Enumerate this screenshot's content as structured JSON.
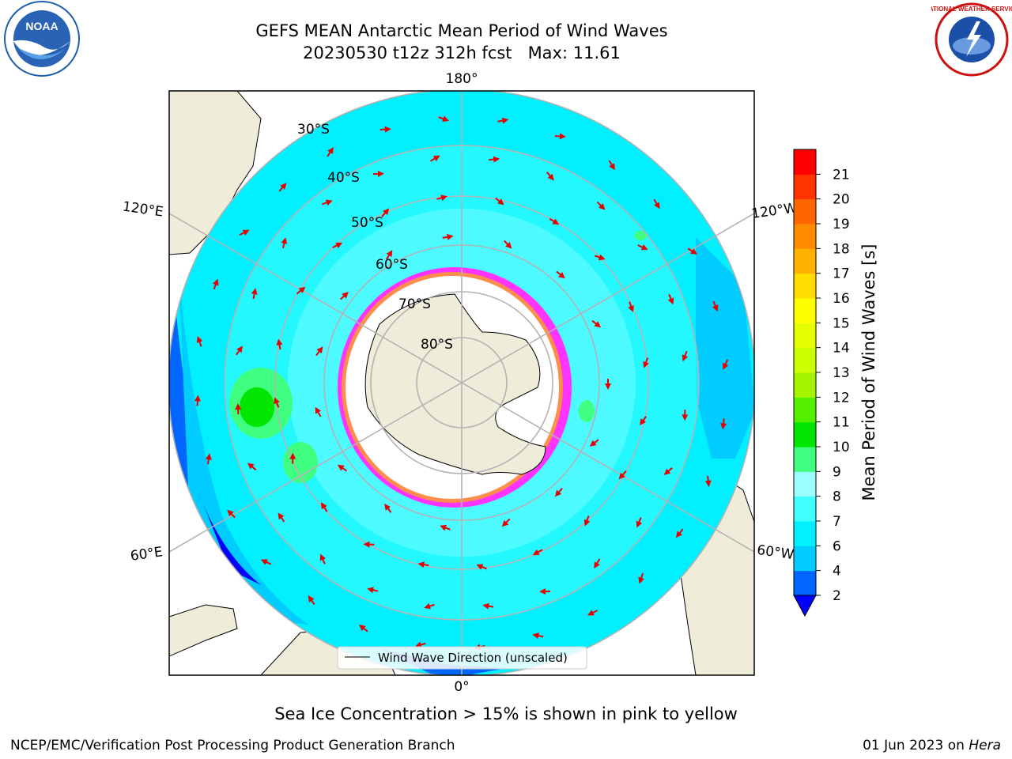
{
  "header": {
    "title_line1": "GEFS MEAN Antarctic Mean Period of Wind Waves",
    "title_line2": "20230530 t12z 312h fcst   Max: 11.61"
  },
  "logos": {
    "left": {
      "icon": "noaa-logo",
      "text": "NOAA"
    },
    "right": {
      "icon": "nws-logo",
      "text": "NATIONAL WEATHER SERVICE"
    }
  },
  "map": {
    "projection": "south-polar-stereographic",
    "longitude_labels": {
      "top": "180°",
      "bottom": "0°",
      "left_upper": "120°E",
      "left_lower": "60°E",
      "right_upper": "120°W",
      "right_lower": "60°W"
    },
    "latitude_labels": [
      "30°S",
      "40°S",
      "50°S",
      "60°S",
      "70°S",
      "80°S"
    ],
    "legend": {
      "label": "Wind Wave Direction (unscaled)"
    },
    "arrow_color": "#e60000",
    "land_color": "#efedda",
    "ice_color": "#ff33ff"
  },
  "colorbar": {
    "label": "Mean Period of Wind Waves [s]",
    "ticks": [
      "2",
      "4",
      "6",
      "7",
      "8",
      "9",
      "10",
      "11",
      "12",
      "13",
      "14",
      "15",
      "16",
      "17",
      "18",
      "19",
      "20",
      "21"
    ],
    "colors": [
      "#0066ff",
      "#00ccff",
      "#00f0ff",
      "#40ffff",
      "#9bffff",
      "#40ff80",
      "#00e600",
      "#55f000",
      "#a6f500",
      "#ccff00",
      "#e6ff00",
      "#ffff00",
      "#ffdd00",
      "#ffb300",
      "#ff8c00",
      "#ff6600",
      "#ff3300",
      "#ff0000"
    ],
    "under_color": "#0000ff"
  },
  "note": "Sea Ice Concentration > 15% is shown in pink to yellow",
  "footer": {
    "left": "NCEP/EMC/Verification Post Processing Product Generation Branch",
    "right_prefix": "01 Jun 2023 on ",
    "right_italic": "Hera"
  }
}
